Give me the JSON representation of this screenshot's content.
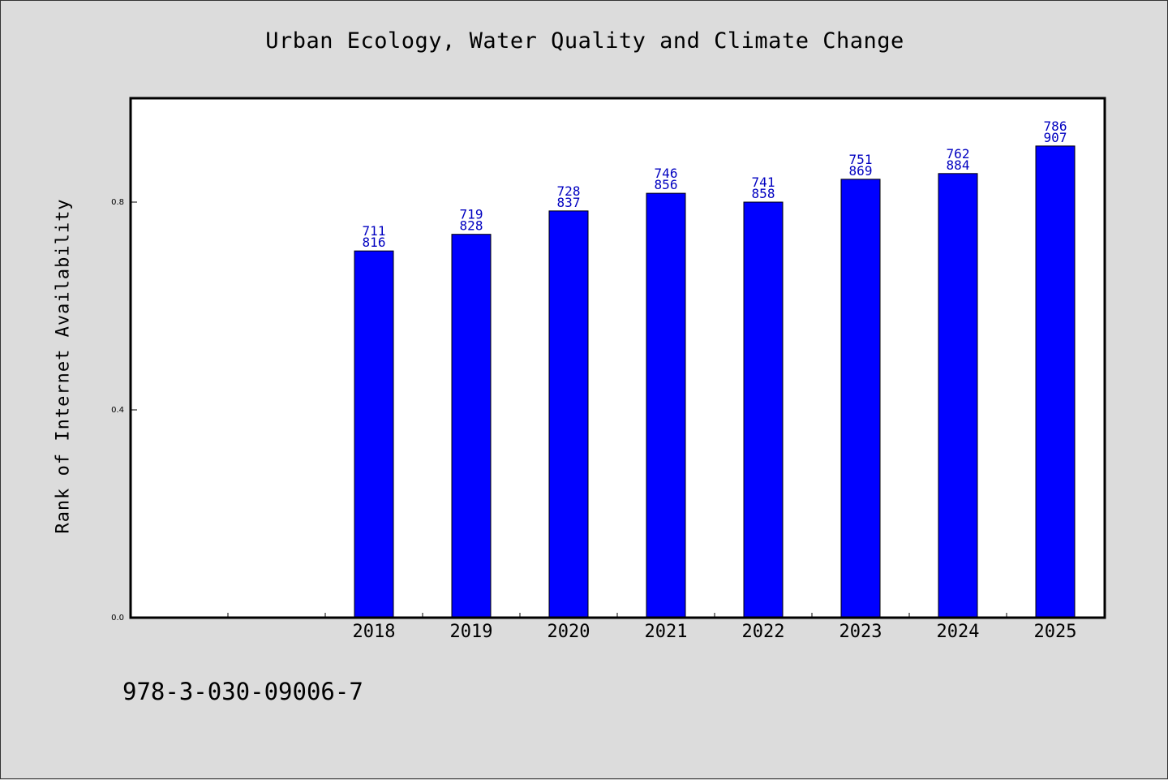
{
  "page": {
    "title": "Urban Ecology, Water Quality and Climate Change",
    "footer_text": "978-3-030-09006-7"
  },
  "colors": {
    "background": "#dcdcdc",
    "plot_background": "#ffffff",
    "bar_fill": "#0000ff",
    "label_text": "#0000c0"
  },
  "chart_data": {
    "type": "bar",
    "title": "Urban Ecology, Water Quality and Climate Change",
    "xlabel": "",
    "ylabel": "Rank of Internet Availability",
    "categories": [
      "2018",
      "2019",
      "2020",
      "2021",
      "2022",
      "2023",
      "2024",
      "2025"
    ],
    "values": [
      0.706,
      0.738,
      0.783,
      0.817,
      0.8,
      0.844,
      0.855,
      0.908
    ],
    "data_labels_top": [
      "711",
      "719",
      "728",
      "746",
      "741",
      "751",
      "762",
      "786"
    ],
    "data_labels_bottom": [
      "816",
      "828",
      "837",
      "856",
      "858",
      "869",
      "884",
      "907"
    ],
    "ylim": [
      0.0,
      1.0
    ],
    "y_ticks": [
      0.0,
      0.4,
      0.8
    ],
    "y_tick_labels": [
      "0.0",
      "0.4",
      "0.8"
    ],
    "grid": false,
    "legend": "none"
  }
}
